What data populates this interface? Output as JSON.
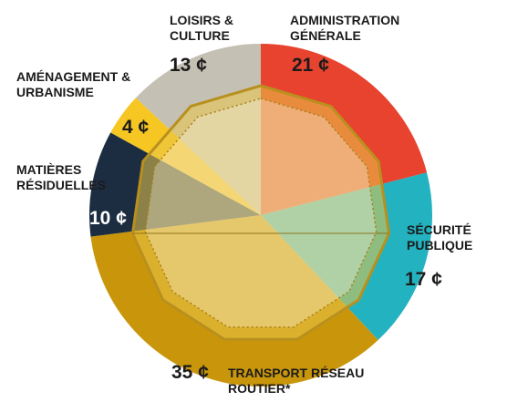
{
  "chart_data": {
    "type": "pie",
    "categories": [
      "ADMINISTRATION GÉNÉRALE",
      "SÉCURITÉ PUBLIQUE",
      "TRANSPORT RÉSEAU ROUTIER*",
      "MATIÈRES RÉSIDUELLES",
      "AMÉNAGEMENT & URBANISME",
      "LOISIRS & CULTURE"
    ],
    "values": [
      21,
      17,
      35,
      10,
      4,
      13
    ],
    "value_labels": [
      "21 ¢",
      "17 ¢",
      "35 ¢",
      "10 ¢",
      "4 ¢",
      "13 ¢"
    ],
    "colors": [
      "#e8432e",
      "#23b2bf",
      "#c9960b",
      "#1c2d42",
      "#f6c623",
      "#c5c0b4"
    ]
  }
}
